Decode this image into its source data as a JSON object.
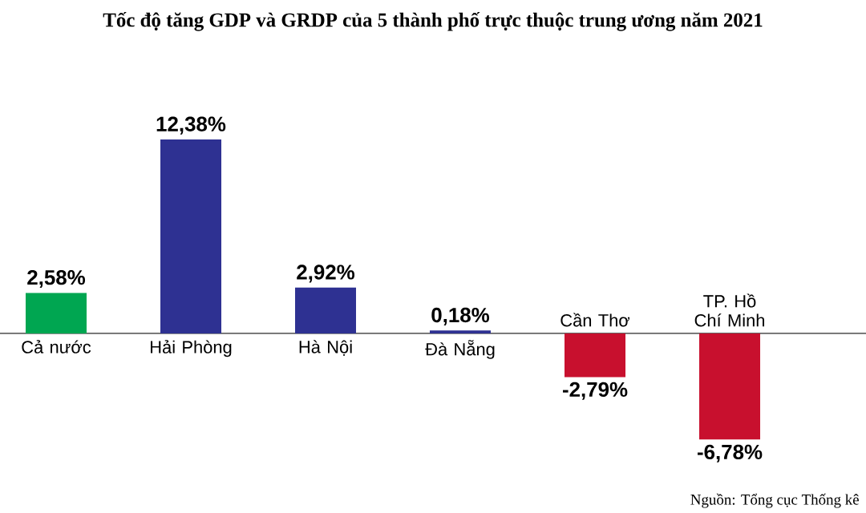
{
  "chart_data": {
    "type": "bar",
    "title": "Tốc độ tăng GDP và GRDP của 5 thành phố trực thuộc trung ương năm 2021",
    "categories": [
      "Cả nước",
      "Hải Phòng",
      "Hà Nội",
      "Đà Nẵng",
      "Cần Thơ",
      "TP. Hồ Chí Minh"
    ],
    "values": [
      2.58,
      12.38,
      2.92,
      0.18,
      -2.79,
      -6.78
    ],
    "colors": [
      "#00a651",
      "#2e3192",
      "#2e3192",
      "#2e3192",
      "#c8102e",
      "#c8102e"
    ],
    "value_labels": [
      "2,58%",
      "12,38%",
      "2,92%",
      "0,18%",
      "-2,79%",
      "-6,78%"
    ],
    "annotations": [
      "Nguồn: Tổng cục Thống kê"
    ]
  }
}
